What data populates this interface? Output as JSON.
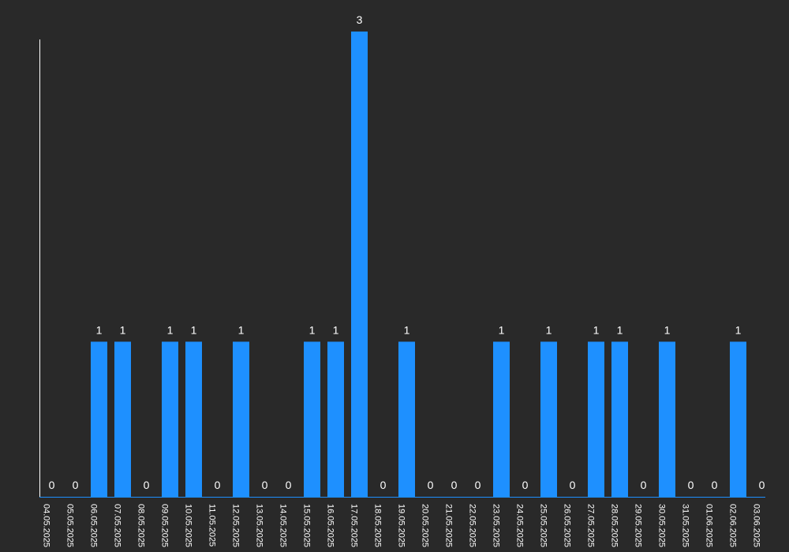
{
  "chart_data": {
    "type": "bar",
    "categories": [
      "04.05.2025",
      "05.05.2025",
      "06.05.2025",
      "07.05.2025",
      "08.05.2025",
      "09.05.2025",
      "10.05.2025",
      "11.05.2025",
      "12.05.2025",
      "13.05.2025",
      "14.05.2025",
      "15.05.2025",
      "16.05.2025",
      "17.05.2025",
      "18.05.2025",
      "19.05.2025",
      "20.05.2025",
      "21.05.2025",
      "22.05.2025",
      "23.05.2025",
      "24.05.2025",
      "25.05.2025",
      "26.05.2025",
      "27.05.2025",
      "28.05.2025",
      "29.05.2025",
      "30.05.2025",
      "31.05.2025",
      "01.06.2025",
      "02.06.2025",
      "03.06.2025"
    ],
    "values": [
      0,
      0,
      1,
      1,
      0,
      1,
      1,
      0,
      1,
      0,
      0,
      1,
      1,
      3,
      0,
      1,
      0,
      0,
      0,
      1,
      0,
      1,
      0,
      1,
      1,
      0,
      1,
      0,
      0,
      1,
      0
    ],
    "ylim": [
      0,
      3
    ],
    "bar_color": "#1e90ff",
    "background": "#292929",
    "grid": false,
    "legend": "none",
    "data_labels": true
  }
}
